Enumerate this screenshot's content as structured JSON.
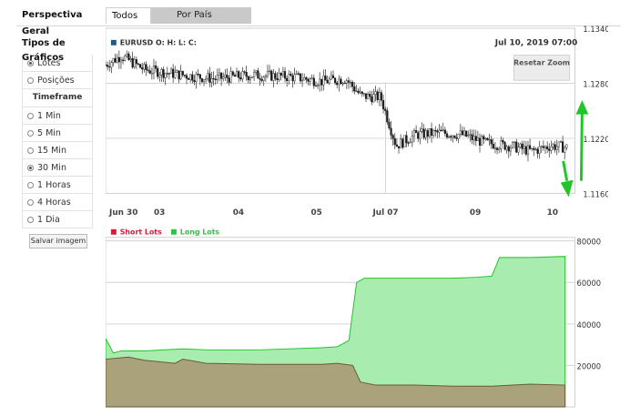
{
  "tabs": {
    "geral": "Perspectiva Geral",
    "todos": "Todos",
    "pais": "Por País"
  },
  "sidebar": {
    "title": "Tipos de Gráficos",
    "chart_types": [
      {
        "label": "Lotes",
        "selected": true
      },
      {
        "label": "Posições",
        "selected": false
      }
    ],
    "timeframe_header": "Timeframe",
    "timeframes": [
      {
        "label": "1 Min",
        "selected": false
      },
      {
        "label": "5 Min",
        "selected": false
      },
      {
        "label": "15 Min",
        "selected": false
      },
      {
        "label": "30 Min",
        "selected": true
      },
      {
        "label": "1 Horas",
        "selected": false
      },
      {
        "label": "4 Horas",
        "selected": false
      },
      {
        "label": "1 Dia",
        "selected": false
      }
    ],
    "save_button": "Salvar imagem"
  },
  "price_chart": {
    "symbol_label": "EURUSD O: H: L: C:",
    "timestamp": "Jul 10, 2019 07:00",
    "reset_zoom": "Resetar Zoom",
    "x_ticks": [
      "Jun 30",
      "03",
      "04",
      "05",
      "Jul 07",
      "09",
      "10"
    ],
    "y_ticks": [
      "1.1340",
      "1.1280",
      "1.1220",
      "1.1160"
    ]
  },
  "lots_chart": {
    "legend": [
      {
        "name": "Short Lots",
        "color": "#d81b3b"
      },
      {
        "name": "Long Lots",
        "color": "#2ec441"
      }
    ],
    "y_ticks": [
      "80000",
      "60000",
      "40000",
      "20000"
    ]
  },
  "chart_data": [
    {
      "type": "line",
      "title": "EURUSD O: H: L: C:",
      "xlabel": "",
      "ylabel": "",
      "ylim": [
        1.116,
        1.134
      ],
      "categories": [
        "Jun 30",
        "03",
        "04",
        "05",
        "Jul 07",
        "09",
        "10"
      ],
      "series": [
        {
          "name": "EURUSD",
          "x": [
            0,
            0.2,
            0.5,
            0.9,
            1.4,
            1.9,
            2.4,
            2.8,
            3.1,
            3.3,
            3.55,
            3.75,
            4.0,
            4.3,
            4.6,
            4.9,
            5.2,
            5.5,
            5.75,
            5.95
          ],
          "y": [
            1.13,
            1.131,
            1.1295,
            1.129,
            1.1285,
            1.1289,
            1.1287,
            1.1282,
            1.1285,
            1.1266,
            1.1265,
            1.1212,
            1.1224,
            1.1226,
            1.1224,
            1.1215,
            1.1212,
            1.1206,
            1.1212,
            1.121
          ]
        }
      ]
    },
    {
      "type": "area",
      "title": "",
      "xlabel": "",
      "ylabel": "",
      "ylim": [
        0,
        80000
      ],
      "series": [
        {
          "name": "Short Lots",
          "x": [
            0,
            0.3,
            0.5,
            0.9,
            1.0,
            1.3,
            2.0,
            2.8,
            3.0,
            3.2,
            3.3,
            3.5,
            4.0,
            4.5,
            5.0,
            5.5,
            5.95
          ],
          "y": [
            23000,
            24000,
            22500,
            21000,
            23000,
            21000,
            20500,
            20500,
            21000,
            20000,
            12000,
            10500,
            10500,
            10000,
            10000,
            11000,
            10500
          ]
        },
        {
          "name": "Long Lots",
          "x": [
            0,
            0.1,
            0.2,
            0.5,
            1.0,
            1.3,
            2.0,
            2.8,
            3.0,
            3.15,
            3.25,
            3.35,
            4.0,
            4.5,
            4.8,
            5.0,
            5.1,
            5.5,
            5.95
          ],
          "y": [
            33000,
            26000,
            27000,
            27000,
            28000,
            27500,
            27500,
            28500,
            29000,
            32000,
            60000,
            62000,
            62000,
            62000,
            62500,
            63000,
            72000,
            72000,
            72500
          ]
        }
      ]
    }
  ]
}
